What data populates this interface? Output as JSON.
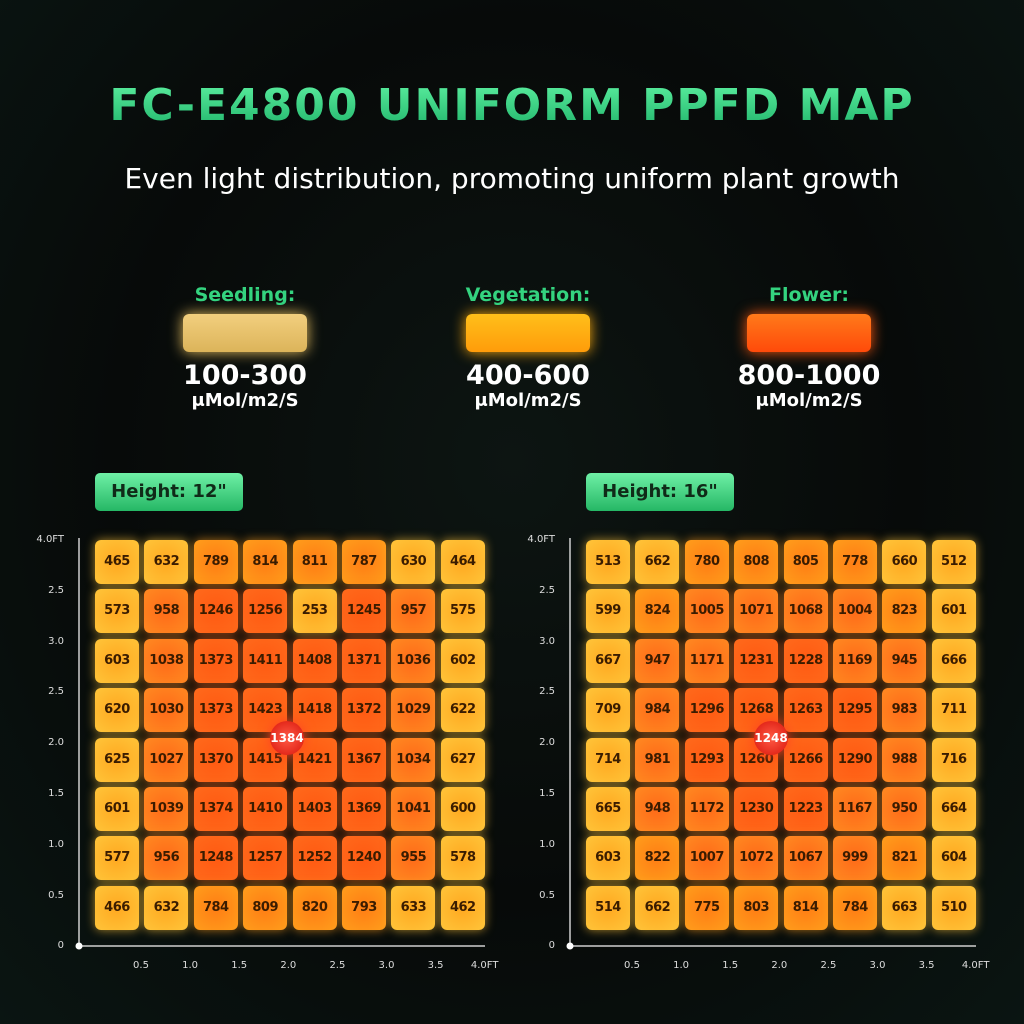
{
  "header": {
    "title": "FC-E4800 UNIFORM PPFD MAP",
    "subtitle": "Even light distribution, promoting uniform plant growth"
  },
  "legend": [
    {
      "label": "Seedling:",
      "range": "100-300",
      "unit": "μMol/m2/S"
    },
    {
      "label": "Vegetation:",
      "range": "400-600",
      "unit": "μMol/m2/S"
    },
    {
      "label": "Flower:",
      "range": "800-1000",
      "unit": "μMol/m2/S"
    }
  ],
  "maps": [
    {
      "height": "Height: 12\"",
      "center": 1384,
      "y_axis": [
        "4.0FT",
        "2.5",
        "3.0",
        "2.5",
        "2.0",
        "1.5",
        "1.0",
        "0.5",
        "0"
      ],
      "x_axis": [
        "0.5",
        "1.0",
        "1.5",
        "2.0",
        "2.5",
        "3.0",
        "3.5",
        "4.0FT"
      ],
      "cells": [
        [
          465,
          632,
          789,
          814,
          811,
          787,
          630,
          464
        ],
        [
          573,
          958,
          1246,
          1256,
          253,
          1245,
          957,
          575
        ],
        [
          603,
          1038,
          1373,
          1411,
          1408,
          1371,
          1036,
          602
        ],
        [
          620,
          1030,
          1373,
          1423,
          1418,
          1372,
          1029,
          622
        ],
        [
          625,
          1027,
          1370,
          1415,
          1421,
          1367,
          1034,
          627
        ],
        [
          601,
          1039,
          1374,
          1410,
          1403,
          1369,
          1041,
          600
        ],
        [
          577,
          956,
          1248,
          1257,
          1252,
          1240,
          955,
          578
        ],
        [
          466,
          632,
          784,
          809,
          820,
          793,
          633,
          462
        ]
      ]
    },
    {
      "height": "Height: 16\"",
      "center": 1248,
      "y_axis": [
        "4.0FT",
        "2.5",
        "3.0",
        "2.5",
        "2.0",
        "1.5",
        "1.0",
        "0.5",
        "0"
      ],
      "x_axis": [
        "0.5",
        "1.0",
        "1.5",
        "2.0",
        "2.5",
        "3.0",
        "3.5",
        "4.0FT"
      ],
      "cells": [
        [
          513,
          662,
          780,
          808,
          805,
          778,
          660,
          512
        ],
        [
          599,
          824,
          1005,
          1071,
          1068,
          1004,
          823,
          601
        ],
        [
          667,
          947,
          1171,
          1231,
          1228,
          1169,
          945,
          666
        ],
        [
          709,
          984,
          1296,
          1268,
          1263,
          1295,
          983,
          711
        ],
        [
          714,
          981,
          1293,
          1260,
          1266,
          1290,
          988,
          716
        ],
        [
          665,
          948,
          1172,
          1230,
          1223,
          1167,
          950,
          664
        ],
        [
          603,
          822,
          1007,
          1072,
          1067,
          999,
          821,
          604
        ],
        [
          514,
          662,
          775,
          803,
          814,
          784,
          663,
          510
        ]
      ]
    }
  ]
}
